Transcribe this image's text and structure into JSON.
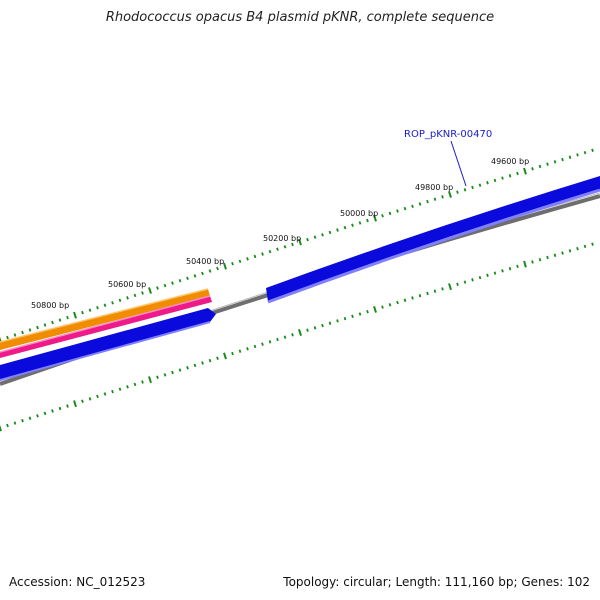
{
  "header": {
    "title": "Rhodococcus opacus B4 plasmid pKNR, complete sequence"
  },
  "footer": {
    "accession": "Accession: NC_012523",
    "summary": "Topology: circular; Length: 111,160 bp; Genes: 102"
  },
  "map": {
    "tick_labels": [
      "50800 bp",
      "50600 bp",
      "50400 bp",
      "50200 bp",
      "50000 bp",
      "49800 bp",
      "49600 bp"
    ],
    "gene_label": "ROP_pKNR-00470",
    "colors": {
      "tick": "#1a8a1a",
      "forward_gene": "#0a0adc",
      "orange_track": "#f08c00",
      "magenta_track": "#ee1a8a",
      "backbone": "#808080",
      "gene_label": "#1a1acc"
    }
  }
}
